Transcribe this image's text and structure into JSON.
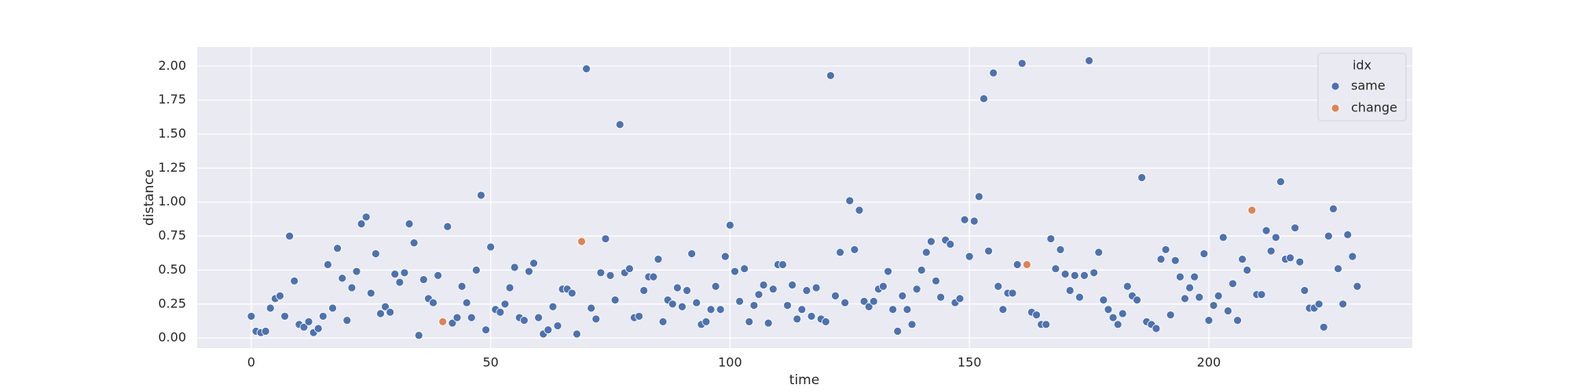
{
  "chart_data": {
    "type": "scatter",
    "x_label": "time",
    "y_label": "distance",
    "xlim": [
      -11.3,
      242.5
    ],
    "ylim": [
      -0.074,
      2.14
    ],
    "xticks": [
      0,
      50,
      100,
      150,
      200
    ],
    "yticks": [
      {
        "value": 0,
        "label": "0.00"
      },
      0.25,
      {
        "value": 0.5,
        "label": "0.50"
      },
      0.75,
      {
        "value": 1,
        "label": "1.00"
      },
      1.25,
      {
        "value": 1.5,
        "label": "1.50"
      },
      1.75,
      {
        "value": 2,
        "label": "2.00"
      }
    ],
    "grid": true,
    "legend_title": "idx",
    "legend_position": "upper right",
    "series": [
      {
        "name": "same",
        "color": "#4c72b0",
        "x": [
          0,
          1,
          2,
          3,
          4,
          5,
          6,
          7,
          8,
          9,
          10,
          11,
          12,
          13,
          14,
          15,
          16,
          17,
          18,
          19,
          20,
          21,
          22,
          23,
          24,
          25,
          26,
          27,
          28,
          29,
          30,
          31,
          32,
          33,
          34,
          35,
          36,
          37,
          38,
          39,
          41,
          42,
          43,
          44,
          45,
          46,
          47,
          48,
          49,
          50,
          51,
          52,
          53,
          54,
          55,
          56,
          57,
          58,
          59,
          60,
          61,
          62,
          63,
          64,
          65,
          66,
          67,
          68,
          70,
          71,
          72,
          73,
          74,
          75,
          76,
          77,
          78,
          79,
          80,
          81,
          82,
          83,
          84,
          85,
          86,
          87,
          88,
          89,
          90,
          91,
          92,
          93,
          94,
          95,
          96,
          97,
          98,
          99,
          100,
          101,
          102,
          103,
          104,
          105,
          106,
          107,
          108,
          109,
          110,
          111,
          112,
          113,
          114,
          115,
          116,
          117,
          118,
          119,
          120,
          121,
          122,
          123,
          124,
          125,
          126,
          127,
          128,
          129,
          130,
          131,
          132,
          133,
          134,
          135,
          136,
          137,
          138,
          139,
          140,
          141,
          142,
          143,
          144,
          145,
          146,
          147,
          148,
          149,
          150,
          151,
          152,
          153,
          154,
          155,
          156,
          157,
          158,
          159,
          160,
          161,
          163,
          164,
          165,
          166,
          167,
          168,
          169,
          170,
          171,
          172,
          173,
          174,
          175,
          176,
          177,
          178,
          179,
          180,
          181,
          182,
          183,
          184,
          185,
          186,
          187,
          188,
          189,
          190,
          191,
          192,
          193,
          194,
          195,
          196,
          197,
          198,
          199,
          200,
          201,
          202,
          203,
          204,
          205,
          206,
          207,
          208,
          210,
          211,
          212,
          213,
          214,
          215,
          216,
          217,
          218,
          219,
          220,
          221,
          222,
          223,
          224,
          225,
          226,
          227,
          228,
          229,
          230,
          231
        ],
        "values": [
          0.16,
          0.05,
          0.04,
          0.05,
          0.22,
          0.29,
          0.31,
          0.16,
          0.75,
          0.42,
          0.1,
          0.08,
          0.12,
          0.04,
          0.07,
          0.16,
          0.54,
          0.22,
          0.66,
          0.44,
          0.13,
          0.37,
          0.49,
          0.84,
          0.89,
          0.33,
          0.62,
          0.18,
          0.23,
          0.19,
          0.47,
          0.41,
          0.48,
          0.84,
          0.7,
          0.02,
          0.43,
          0.29,
          0.26,
          0.46,
          0.82,
          0.11,
          0.15,
          0.38,
          0.26,
          0.15,
          0.5,
          1.05,
          0.06,
          0.67,
          0.21,
          0.19,
          0.25,
          0.37,
          0.52,
          0.15,
          0.13,
          0.49,
          0.55,
          0.15,
          0.03,
          0.06,
          0.23,
          0.09,
          0.36,
          0.36,
          0.33,
          0.03,
          1.98,
          0.22,
          0.14,
          0.48,
          0.73,
          0.46,
          0.28,
          1.57,
          0.48,
          0.51,
          0.15,
          0.16,
          0.35,
          0.45,
          0.45,
          0.58,
          0.12,
          0.28,
          0.25,
          0.37,
          0.23,
          0.35,
          0.62,
          0.26,
          0.1,
          0.12,
          0.21,
          0.38,
          0.21,
          0.6,
          0.83,
          0.49,
          0.27,
          0.51,
          0.12,
          0.24,
          0.32,
          0.39,
          0.11,
          0.36,
          0.54,
          0.54,
          0.24,
          0.39,
          0.14,
          0.21,
          0.35,
          0.16,
          0.37,
          0.14,
          0.12,
          1.93,
          0.31,
          0.63,
          0.26,
          1.01,
          0.65,
          0.94,
          0.27,
          0.23,
          0.27,
          0.36,
          0.38,
          0.49,
          0.21,
          0.05,
          0.31,
          0.21,
          0.1,
          0.36,
          0.5,
          0.63,
          0.71,
          0.42,
          0.3,
          0.72,
          0.69,
          0.26,
          0.29,
          0.87,
          0.6,
          0.86,
          1.04,
          1.76,
          0.64,
          1.95,
          0.38,
          0.21,
          0.33,
          0.33,
          0.54,
          2.02,
          0.19,
          0.17,
          0.1,
          0.1,
          0.73,
          0.51,
          0.65,
          0.47,
          0.35,
          0.46,
          0.3,
          0.46,
          2.04,
          0.48,
          0.63,
          0.28,
          0.21,
          0.15,
          0.1,
          0.18,
          0.38,
          0.31,
          0.28,
          1.18,
          0.12,
          0.1,
          0.07,
          0.58,
          0.65,
          0.17,
          0.57,
          0.45,
          0.29,
          0.37,
          0.45,
          0.3,
          0.62,
          0.13,
          0.24,
          0.31,
          0.74,
          0.2,
          0.4,
          0.13,
          0.58,
          0.5,
          0.32,
          0.32,
          0.79,
          0.64,
          0.74,
          1.15,
          0.58,
          0.59,
          0.81,
          0.56,
          0.35,
          0.22,
          0.22,
          0.25,
          0.08,
          0.75,
          0.95,
          0.51,
          0.25,
          0.76,
          0.6,
          0.38
        ]
      },
      {
        "name": "change",
        "color": "#dd8452",
        "x": [
          40,
          69,
          162,
          209
        ],
        "values": [
          0.12,
          0.71,
          0.54,
          0.94
        ]
      }
    ]
  }
}
